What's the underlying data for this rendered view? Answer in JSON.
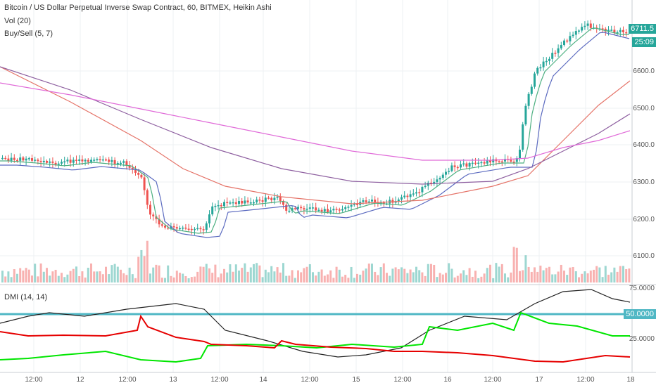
{
  "header": {
    "title": "Bitcoin / US Dollar Perpetual Inverse Swap Contract, 60, BITMEX, Heikin Ashi",
    "vol_indicator": "Vol (20)",
    "buysell_indicator": "Buy/Sell (5, 7)",
    "dmi_indicator": "DMI (14, 14)"
  },
  "price_axis": {
    "labels": [
      "6600.0",
      "6500.0",
      "6400.0",
      "6300.0",
      "6200.0",
      "6100.0"
    ],
    "last_price": "6711.5",
    "countdown": "25:09"
  },
  "dmi_axis": {
    "labels": [
      "75.0000",
      "25.0000"
    ],
    "level_tag": "50.0000"
  },
  "time_axis": {
    "labels": [
      "12:00",
      "12",
      "12:00",
      "13",
      "12:00",
      "14",
      "12:00",
      "15",
      "12:00",
      "16",
      "12:00",
      "17",
      "12:00",
      "18"
    ]
  },
  "colors": {
    "up": "#26a69a",
    "down": "#ef5350",
    "ema_fast": "#4caf80",
    "ema_mid": "#5c6bc0",
    "ema_red": "#e57368",
    "ema_purple": "#8e5fa0",
    "ema_pink": "#e06ad8",
    "dmi_black": "#222222",
    "dmi_green": "#00e600",
    "dmi_red": "#e60000",
    "dmi_level": "#4fb7c4",
    "price_tag": "#26a69a"
  }
}
